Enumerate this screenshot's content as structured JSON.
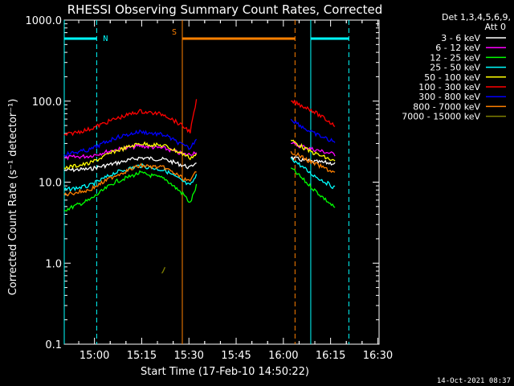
{
  "chart_data": {
    "type": "line",
    "title": "RHESSI Observing Summary Count Rates, Corrected",
    "xlabel": "Start Time (17-Feb-10 14:50:22)",
    "ylabel": "Corrected Count Rate (s⁻¹ detector⁻¹)",
    "yscale": "log",
    "xlim_minutes": [
      0,
      100
    ],
    "ylim": [
      0.1,
      1000.0
    ],
    "x_ticks": [
      {
        "label": "15:00",
        "minute": 9.6
      },
      {
        "label": "15:15",
        "minute": 24.6
      },
      {
        "label": "15:30",
        "minute": 39.6
      },
      {
        "label": "15:45",
        "minute": 54.6
      },
      {
        "label": "16:00",
        "minute": 69.6
      },
      {
        "label": "16:15",
        "minute": 84.6
      },
      {
        "label": "16:30",
        "minute": 99.6
      }
    ],
    "y_ticks": [
      "0.1",
      "1.0",
      "10.0",
      "100.0",
      "1000.0"
    ],
    "legend_header": [
      "Det 1,3,4,5,6,9,",
      "Att 0"
    ],
    "legend_placement": "right",
    "series": [
      {
        "name": "3 - 6 keV",
        "color": "#ffffff",
        "values": [
          [
            0,
            14
          ],
          [
            8,
            14.5
          ],
          [
            16,
            17
          ],
          [
            24,
            20
          ],
          [
            32,
            19
          ],
          [
            38,
            16
          ],
          [
            40,
            15
          ],
          [
            42,
            18
          ],
          [
            70,
            null
          ],
          [
            72,
            20
          ],
          [
            78,
            18
          ],
          [
            86,
            17
          ]
        ]
      },
      {
        "name": "6 - 12 keV",
        "color": "#ff00ff",
        "values": [
          [
            0,
            20
          ],
          [
            8,
            21
          ],
          [
            16,
            25
          ],
          [
            24,
            28
          ],
          [
            32,
            26
          ],
          [
            38,
            22
          ],
          [
            40,
            22
          ],
          [
            42,
            24
          ],
          [
            70,
            null
          ],
          [
            72,
            30
          ],
          [
            78,
            26
          ],
          [
            86,
            22
          ]
        ]
      },
      {
        "name": "12 - 25 keV",
        "color": "#00ff00",
        "values": [
          [
            0,
            4.5
          ],
          [
            8,
            6
          ],
          [
            16,
            10
          ],
          [
            24,
            13
          ],
          [
            32,
            11
          ],
          [
            38,
            7
          ],
          [
            40,
            5.5
          ],
          [
            42,
            9
          ],
          [
            70,
            null
          ],
          [
            72,
            15
          ],
          [
            78,
            9
          ],
          [
            86,
            4.8
          ]
        ]
      },
      {
        "name": "25 - 50 keV",
        "color": "#00ffff",
        "values": [
          [
            0,
            8
          ],
          [
            8,
            9
          ],
          [
            16,
            13
          ],
          [
            24,
            16
          ],
          [
            32,
            14
          ],
          [
            38,
            10
          ],
          [
            40,
            9
          ],
          [
            42,
            12
          ],
          [
            70,
            null
          ],
          [
            72,
            20
          ],
          [
            78,
            13
          ],
          [
            86,
            8.5
          ]
        ]
      },
      {
        "name": "50 - 100 keV",
        "color": "#ffff00",
        "values": [
          [
            0,
            15
          ],
          [
            8,
            17
          ],
          [
            16,
            24
          ],
          [
            24,
            30
          ],
          [
            32,
            28
          ],
          [
            38,
            22
          ],
          [
            40,
            20
          ],
          [
            42,
            22
          ],
          [
            70,
            null
          ],
          [
            72,
            33
          ],
          [
            78,
            24
          ],
          [
            86,
            18
          ]
        ]
      },
      {
        "name": "100 - 300 keV",
        "color": "#ff0000",
        "values": [
          [
            0,
            38
          ],
          [
            8,
            45
          ],
          [
            16,
            60
          ],
          [
            24,
            75
          ],
          [
            32,
            68
          ],
          [
            38,
            48
          ],
          [
            40,
            42
          ],
          [
            42,
            100
          ],
          [
            70,
            null
          ],
          [
            72,
            100
          ],
          [
            78,
            80
          ],
          [
            86,
            50
          ]
        ]
      },
      {
        "name": "300 - 800 keV",
        "color": "#0000ff",
        "values": [
          [
            0,
            22
          ],
          [
            8,
            25
          ],
          [
            16,
            35
          ],
          [
            24,
            42
          ],
          [
            32,
            38
          ],
          [
            38,
            28
          ],
          [
            40,
            26
          ],
          [
            42,
            35
          ],
          [
            70,
            null
          ],
          [
            72,
            60
          ],
          [
            78,
            42
          ],
          [
            86,
            31
          ]
        ]
      },
      {
        "name": "800 - 7000 keV",
        "color": "#ff8000",
        "values": [
          [
            0,
            7
          ],
          [
            8,
            8
          ],
          [
            16,
            12
          ],
          [
            24,
            16
          ],
          [
            32,
            15
          ],
          [
            38,
            11
          ],
          [
            40,
            10
          ],
          [
            42,
            14
          ],
          [
            70,
            null
          ],
          [
            72,
            24
          ],
          [
            78,
            18
          ],
          [
            86,
            13
          ]
        ]
      },
      {
        "name": "7000 - 15000 keV",
        "color": "#808000",
        "values": [
          [
            31,
            0.75
          ],
          [
            32,
            0.85
          ]
        ]
      }
    ],
    "annotations": [
      {
        "label": "N",
        "color": "#00ffff"
      },
      {
        "label": "S",
        "color": "#ff8000"
      }
    ],
    "bars": [
      {
        "color": "#00ffff",
        "x0": 0,
        "x1": 10.3
      },
      {
        "color": "#ff8000",
        "x0": 37.5,
        "x1": 73.3
      },
      {
        "color": "#00ffff",
        "x0": 78.3,
        "x1": 90.4
      }
    ],
    "vlines": [
      {
        "color": "#00ffff",
        "minute": 0,
        "dash": false
      },
      {
        "color": "#00ffff",
        "minute": 10.3,
        "dash": true
      },
      {
        "color": "#ff8000",
        "minute": 37.5,
        "dash": false
      },
      {
        "color": "#ff8000",
        "minute": 73.3,
        "dash": true
      },
      {
        "color": "#00ffff",
        "minute": 78.3,
        "dash": false
      },
      {
        "color": "#00ffff",
        "minute": 90.4,
        "dash": true
      }
    ]
  },
  "footer_timestamp": "14-Oct-2021 08:37"
}
